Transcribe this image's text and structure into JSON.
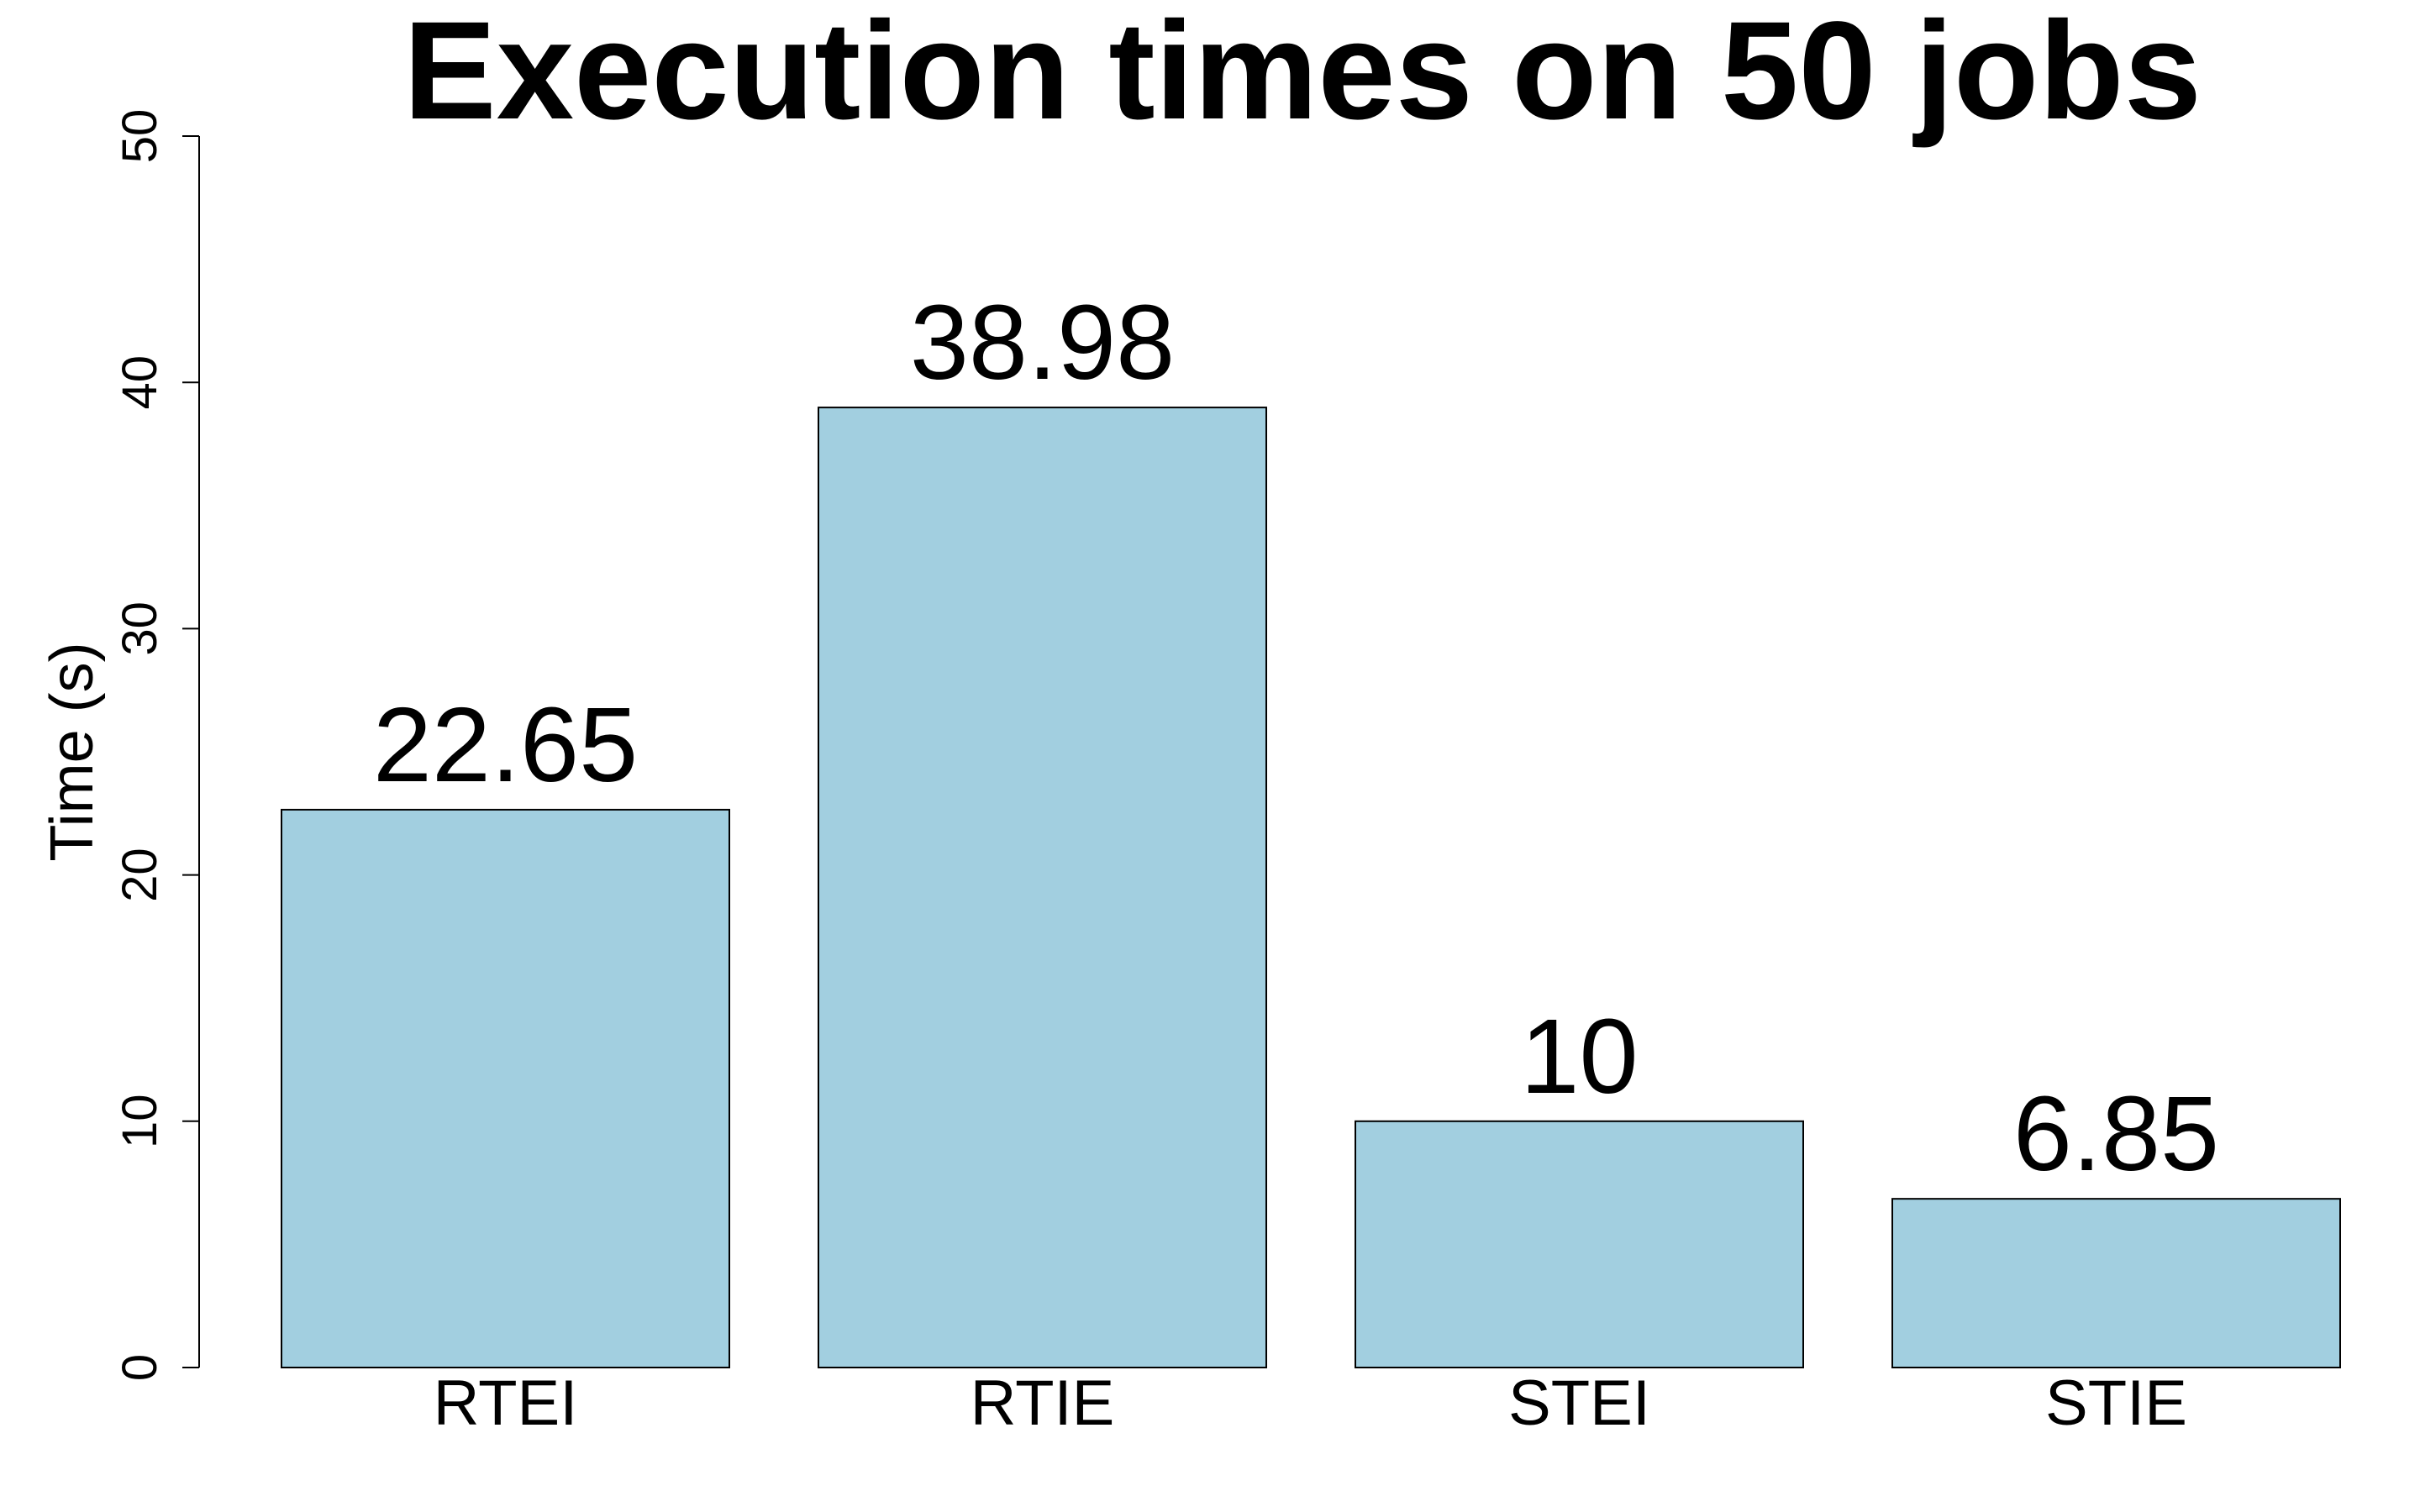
{
  "chart_data": {
    "type": "bar",
    "title": "Execution times on 50 jobs",
    "xlabel": "",
    "ylabel": "Time (s)",
    "categories": [
      "RTEI",
      "RTIE",
      "STEI",
      "STIE"
    ],
    "values": [
      22.65,
      38.98,
      10,
      6.85
    ],
    "value_labels": [
      "22.65",
      "38.98",
      "10",
      "6.85"
    ],
    "ylim": [
      0,
      50
    ],
    "yticks": [
      0,
      10,
      20,
      30,
      40,
      50
    ],
    "ytick_labels": [
      "0",
      "10",
      "20",
      "30",
      "40",
      "50"
    ],
    "grid": false,
    "legend": "none",
    "bar_color": "#a2cfe0",
    "bar_edge_color": "#000000"
  }
}
